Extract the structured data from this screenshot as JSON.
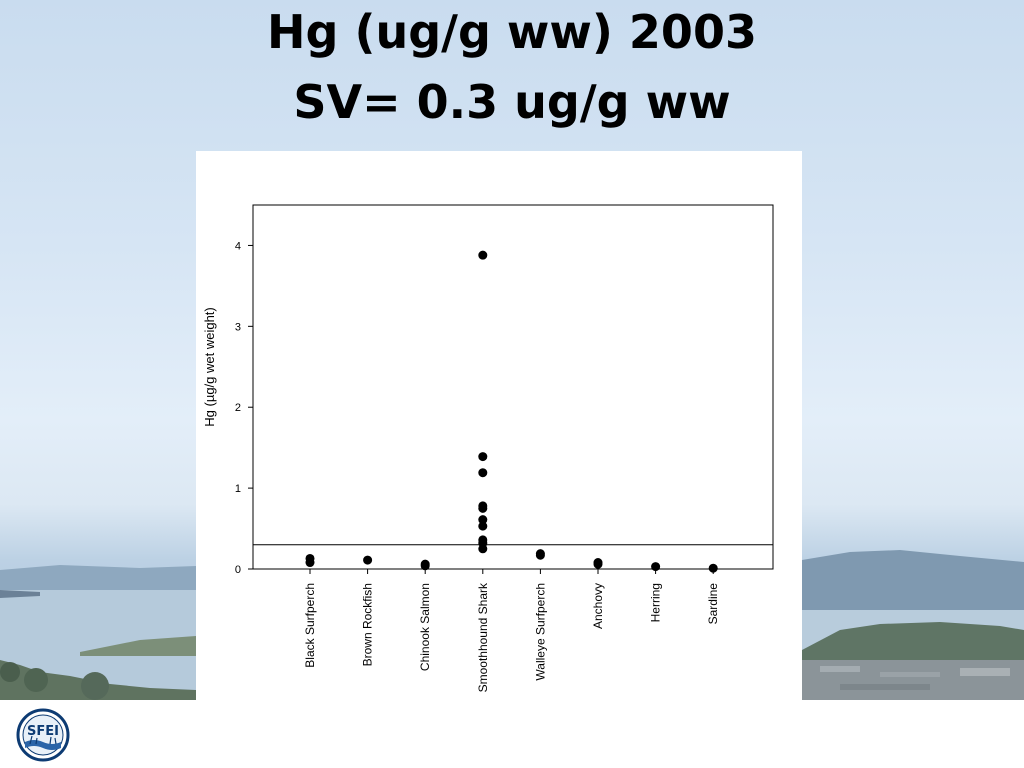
{
  "slide": {
    "title_line1": "Hg (ug/g ww) 2003",
    "title_line2": "SV= 0.3 ug/g ww",
    "logo_text": "SFEI",
    "background_color": "#d6e5f4"
  },
  "chart_data": {
    "type": "scatter",
    "title": "",
    "xlabel": "",
    "ylabel": "Hg (µg/g wet weight)",
    "ylim": [
      0,
      4.5
    ],
    "yticks": [
      0,
      1,
      2,
      3,
      4
    ],
    "categories": [
      "Black Surfperch",
      "Brown Rockfish",
      "Chinook Salmon",
      "Smoothhound Shark",
      "Walleye Surfperch",
      "Anchovy",
      "Herring",
      "Sardine"
    ],
    "points": {
      "Black Surfperch": [
        0.13,
        0.08
      ],
      "Brown Rockfish": [
        0.11
      ],
      "Chinook Salmon": [
        0.06,
        0.04
      ],
      "Smoothhound Shark": [
        3.88,
        1.39,
        1.19,
        0.78,
        0.75,
        0.61,
        0.53,
        0.36,
        0.32,
        0.25
      ],
      "Walleye Surfperch": [
        0.19,
        0.17
      ],
      "Anchovy": [
        0.08,
        0.06
      ],
      "Herring": [
        0.03
      ],
      "Sardine": [
        0.01
      ]
    },
    "reference_line": 0.3,
    "marker_color": "#000000",
    "grid": false,
    "legend": "none"
  }
}
